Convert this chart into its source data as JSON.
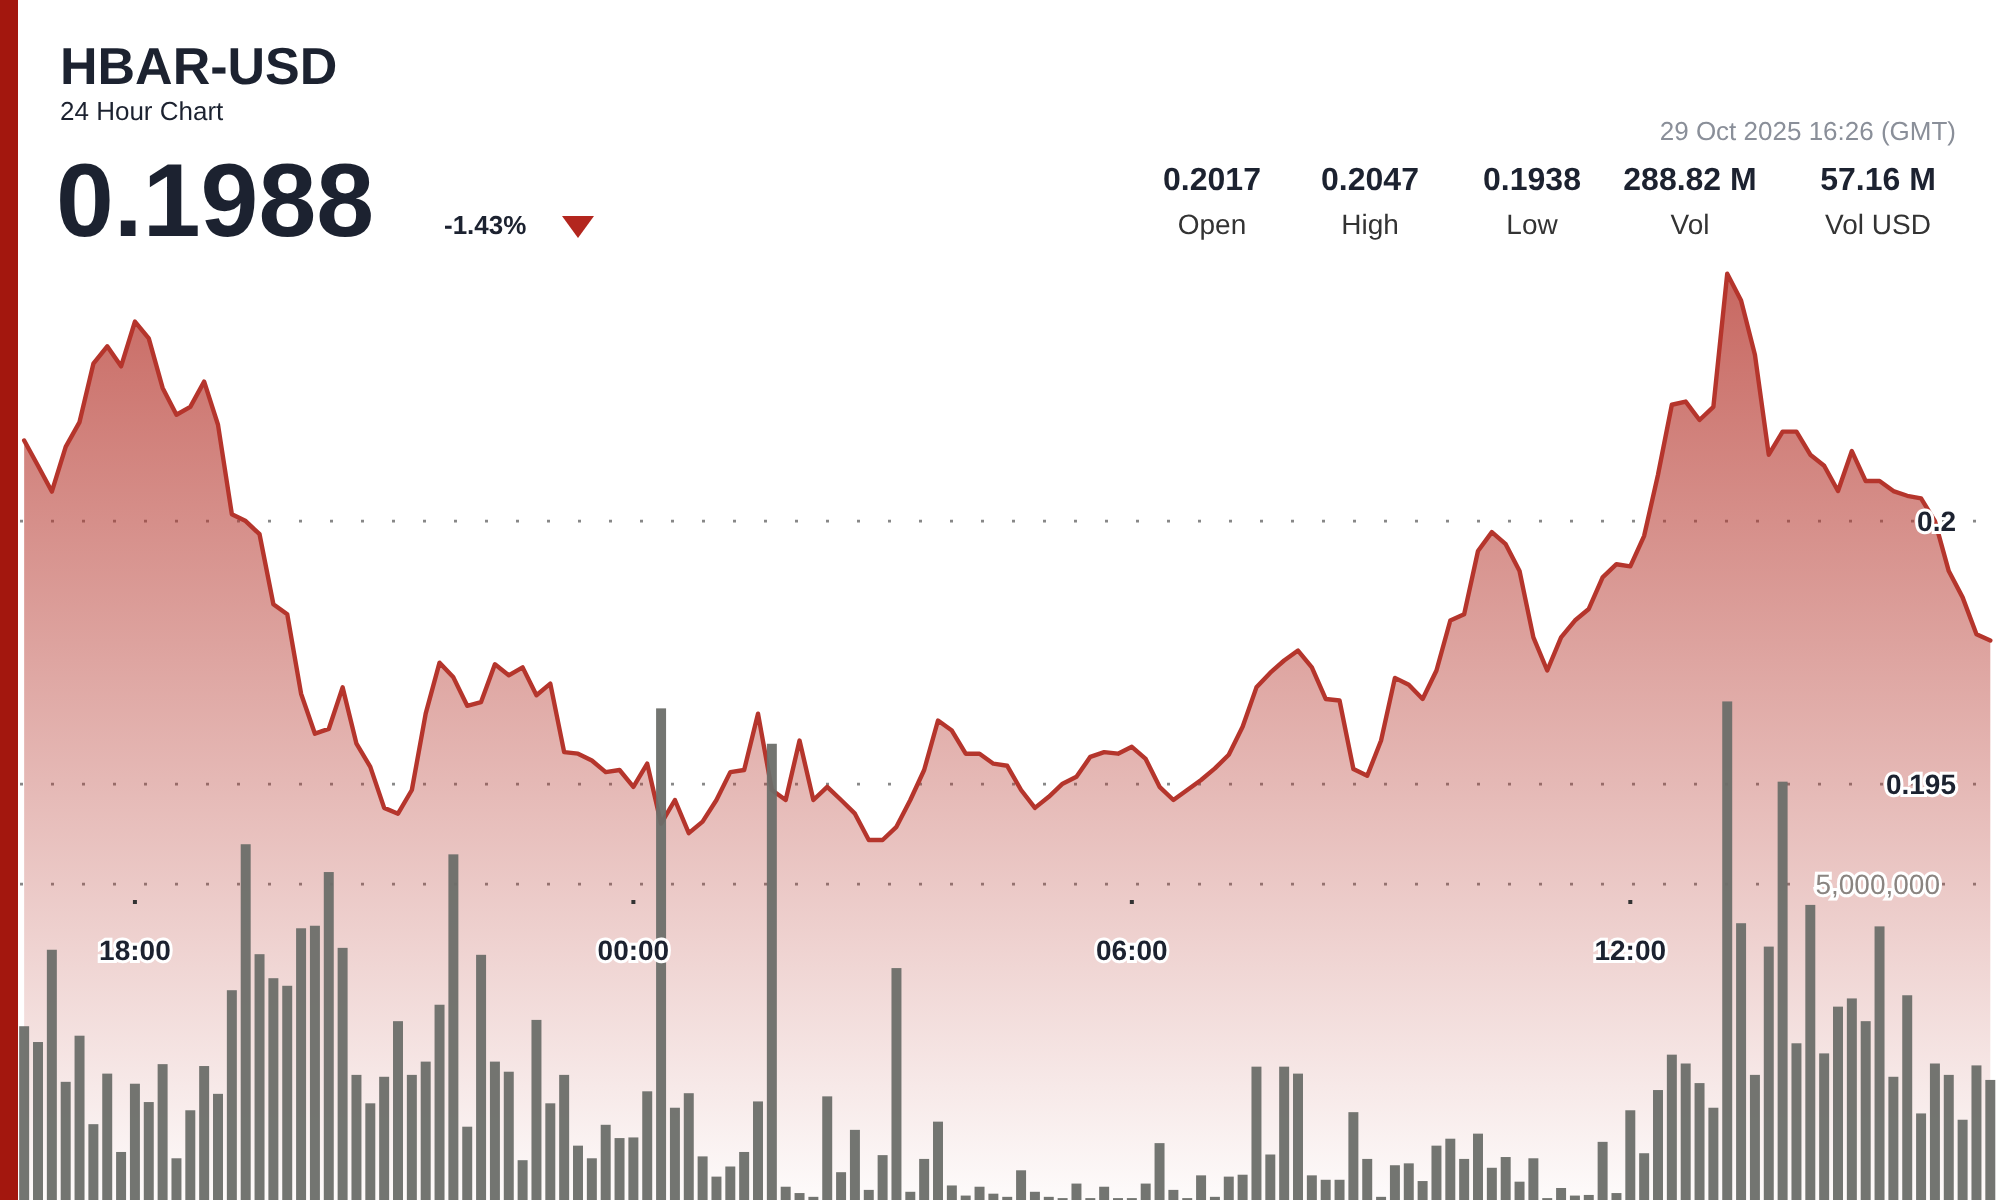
{
  "chart_data": {
    "type": "area",
    "title": "HBAR-USD",
    "subtitle": "24 Hour Chart",
    "annotations": [
      "0.1988",
      "-1.43%",
      "29 Oct 2025 16:26 (GMT)",
      "0.2017",
      "Open",
      "0.2047",
      "High",
      "0.1938",
      "Low",
      "288.82 M",
      "Vol",
      "57.16 M",
      "Vol USD"
    ],
    "x": [
      "2025-10-28T16:40",
      "2025-10-28T16:50",
      "2025-10-28T17:00",
      "2025-10-28T17:10",
      "2025-10-28T17:20",
      "2025-10-28T17:30",
      "2025-10-28T17:40",
      "2025-10-28T17:50",
      "2025-10-28T18:00",
      "2025-10-28T18:10",
      "2025-10-28T18:20",
      "2025-10-28T18:30",
      "2025-10-28T18:40",
      "2025-10-28T18:50",
      "2025-10-28T19:00",
      "2025-10-28T19:10",
      "2025-10-28T19:20",
      "2025-10-28T19:30",
      "2025-10-28T19:40",
      "2025-10-28T19:50",
      "2025-10-28T20:00",
      "2025-10-28T20:10",
      "2025-10-28T20:20",
      "2025-10-28T20:30",
      "2025-10-28T20:40",
      "2025-10-28T20:50",
      "2025-10-28T21:00",
      "2025-10-28T21:10",
      "2025-10-28T21:20",
      "2025-10-28T21:30",
      "2025-10-28T21:40",
      "2025-10-28T21:50",
      "2025-10-28T22:00",
      "2025-10-28T22:10",
      "2025-10-28T22:20",
      "2025-10-28T22:30",
      "2025-10-28T22:40",
      "2025-10-28T22:50",
      "2025-10-28T23:00",
      "2025-10-28T23:10",
      "2025-10-28T23:20",
      "2025-10-28T23:30",
      "2025-10-28T23:40",
      "2025-10-28T23:50",
      "2025-10-29T00:00",
      "2025-10-29T00:10",
      "2025-10-29T00:20",
      "2025-10-29T00:30",
      "2025-10-29T00:40",
      "2025-10-29T00:50",
      "2025-10-29T01:00",
      "2025-10-29T01:10",
      "2025-10-29T01:20",
      "2025-10-29T01:30",
      "2025-10-29T01:40",
      "2025-10-29T01:50",
      "2025-10-29T02:00",
      "2025-10-29T02:10",
      "2025-10-29T02:20",
      "2025-10-29T02:30",
      "2025-10-29T02:40",
      "2025-10-29T02:50",
      "2025-10-29T03:00",
      "2025-10-29T03:10",
      "2025-10-29T03:20",
      "2025-10-29T03:30",
      "2025-10-29T03:40",
      "2025-10-29T03:50",
      "2025-10-29T04:00",
      "2025-10-29T04:10",
      "2025-10-29T04:20",
      "2025-10-29T04:30",
      "2025-10-29T04:40",
      "2025-10-29T04:50",
      "2025-10-29T05:00",
      "2025-10-29T05:10",
      "2025-10-29T05:20",
      "2025-10-29T05:30",
      "2025-10-29T05:40",
      "2025-10-29T05:50",
      "2025-10-29T06:00",
      "2025-10-29T06:10",
      "2025-10-29T06:20",
      "2025-10-29T06:30",
      "2025-10-29T06:40",
      "2025-10-29T06:50",
      "2025-10-29T07:00",
      "2025-10-29T07:10",
      "2025-10-29T07:20",
      "2025-10-29T07:30",
      "2025-10-29T07:40",
      "2025-10-29T07:50",
      "2025-10-29T08:00",
      "2025-10-29T08:10",
      "2025-10-29T08:20",
      "2025-10-29T08:30",
      "2025-10-29T08:40",
      "2025-10-29T08:50",
      "2025-10-29T09:00",
      "2025-10-29T09:10",
      "2025-10-29T09:20",
      "2025-10-29T09:30",
      "2025-10-29T09:40",
      "2025-10-29T09:50",
      "2025-10-29T10:00",
      "2025-10-29T10:10",
      "2025-10-29T10:20",
      "2025-10-29T10:30",
      "2025-10-29T10:40",
      "2025-10-29T10:50",
      "2025-10-29T11:00",
      "2025-10-29T11:10",
      "2025-10-29T11:20",
      "2025-10-29T11:30",
      "2025-10-29T11:40",
      "2025-10-29T11:50",
      "2025-10-29T12:00",
      "2025-10-29T12:10",
      "2025-10-29T12:20",
      "2025-10-29T12:30",
      "2025-10-29T12:40",
      "2025-10-29T12:50",
      "2025-10-29T13:00",
      "2025-10-29T13:10",
      "2025-10-29T13:20",
      "2025-10-29T13:30",
      "2025-10-29T13:40",
      "2025-10-29T13:50",
      "2025-10-29T14:00",
      "2025-10-29T14:10",
      "2025-10-29T14:20",
      "2025-10-29T14:30",
      "2025-10-29T14:40",
      "2025-10-29T14:50",
      "2025-10-29T15:00",
      "2025-10-29T15:10",
      "2025-10-29T15:20",
      "2025-10-29T15:30",
      "2025-10-29T15:40",
      "2025-10-29T15:50",
      "2025-10-29T16:00",
      "2025-10-29T16:10",
      "2025-10-29T16:20"
    ],
    "xlim": [
      "2025-10-28T16:37",
      "2025-10-29T16:27"
    ],
    "xticks": [
      {
        "value": "2025-10-28T18:00",
        "label": "18:00"
      },
      {
        "value": "2025-10-29T00:00",
        "label": "00:00"
      },
      {
        "value": "2025-10-29T06:00",
        "label": "06:00"
      },
      {
        "value": "2025-10-29T12:00",
        "label": "12:00"
      }
    ],
    "ylim": [
      0.1871,
      0.2099
    ],
    "yticks": [
      0.195,
      0.2
    ],
    "y2lim": [
      0,
      18990000
    ],
    "y2ticks": [
      {
        "value": 5000000,
        "label": "5,000,000"
      }
    ],
    "grid": true,
    "series": [
      {
        "color": "#b5352c",
        "values": [
          0.20153,
          0.20105,
          0.20056,
          0.20141,
          0.20188,
          0.20299,
          0.20332,
          0.20294,
          0.20379,
          0.20347,
          0.20253,
          0.20202,
          0.20217,
          0.20265,
          0.20183,
          0.20013,
          0.2,
          0.19975,
          0.19842,
          0.19823,
          0.19672,
          0.19596,
          0.19605,
          0.19684,
          0.19577,
          0.19533,
          0.19455,
          0.19444,
          0.19489,
          0.19634,
          0.19731,
          0.19703,
          0.19649,
          0.19656,
          0.19728,
          0.19707,
          0.19722,
          0.19669,
          0.19691,
          0.19561,
          0.19558,
          0.19545,
          0.19523,
          0.19527,
          0.19495,
          0.19539,
          0.19425,
          0.1947,
          0.19407,
          0.19429,
          0.1947,
          0.19523,
          0.19527,
          0.19634,
          0.19489,
          0.1947,
          0.19583,
          0.1947,
          0.19495,
          0.1947,
          0.19444,
          0.19394,
          0.19394,
          0.19419,
          0.1947,
          0.19527,
          0.19621,
          0.19602,
          0.19558,
          0.19558,
          0.19539,
          0.19535,
          0.19489,
          0.19455,
          0.19476,
          0.19501,
          0.19514,
          0.19552,
          0.19561,
          0.19558,
          0.19571,
          0.19548,
          0.19495,
          0.1947,
          0.19489,
          0.19508,
          0.1953,
          0.19556,
          0.19609,
          0.19684,
          0.19712,
          0.19735,
          0.19754,
          0.19722,
          0.19662,
          0.19659,
          0.19529,
          0.19516,
          0.19583,
          0.19702,
          0.19689,
          0.19662,
          0.19716,
          0.19811,
          0.19823,
          0.19943,
          0.19979,
          0.19956,
          0.19905,
          0.19779,
          0.19716,
          0.19779,
          0.19811,
          0.19833,
          0.19893,
          0.19918,
          0.19914,
          0.19972,
          0.20088,
          0.20221,
          0.20227,
          0.20192,
          0.20217,
          0.2047,
          0.20419,
          0.20316,
          0.20126,
          0.2017,
          0.2017,
          0.20126,
          0.20105,
          0.20057,
          0.20133,
          0.20076,
          0.20076,
          0.20057,
          0.20048,
          0.20043,
          0.2,
          0.19905,
          0.19855,
          0.19785,
          0.19773
        ]
      },
      {
        "type": "bar",
        "axis": "y2",
        "color": "#6b6e69",
        "values": [
          2750000,
          2500000,
          3960000,
          1870000,
          2600000,
          1200000,
          2000000,
          760000,
          1840000,
          1550000,
          2150000,
          660000,
          1420000,
          2120000,
          1680000,
          3320000,
          5630000,
          3890000,
          3510000,
          3390000,
          4300000,
          4340000,
          5190000,
          3990000,
          1980000,
          1530000,
          1950000,
          2830000,
          1980000,
          2190000,
          3090000,
          5470000,
          1160000,
          3880000,
          2190000,
          2030000,
          630000,
          2850000,
          1530000,
          1980000,
          860000,
          660000,
          1190000,
          980000,
          990000,
          1720000,
          7780000,
          1460000,
          1690000,
          690000,
          370000,
          530000,
          760000,
          1560000,
          7220000,
          210000,
          110000,
          50000,
          1640000,
          440000,
          1110000,
          160000,
          710000,
          3670000,
          130000,
          650000,
          1240000,
          230000,
          70000,
          210000,
          100000,
          50000,
          470000,
          130000,
          50000,
          30000,
          260000,
          30000,
          210000,
          30000,
          30000,
          260000,
          900000,
          160000,
          30000,
          390000,
          50000,
          370000,
          400000,
          2110000,
          720000,
          2110000,
          2000000,
          390000,
          320000,
          320000,
          1390000,
          650000,
          50000,
          550000,
          580000,
          300000,
          860000,
          970000,
          650000,
          1050000,
          510000,
          680000,
          290000,
          660000,
          30000,
          190000,
          70000,
          80000,
          920000,
          110000,
          1420000,
          740000,
          1740000,
          2300000,
          2160000,
          1850000,
          1460000,
          7890000,
          4380000,
          1980000,
          4010000,
          6620000,
          2480000,
          4670000,
          2320000,
          3060000,
          3190000,
          2830000,
          4330000,
          1950000,
          3240000,
          1370000,
          2160000,
          1980000,
          1270000,
          2130000,
          1900000
        ]
      }
    ]
  }
}
